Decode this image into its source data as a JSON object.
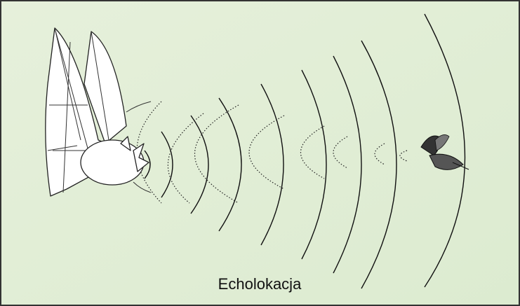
{
  "caption": "Echolokacja"
}
